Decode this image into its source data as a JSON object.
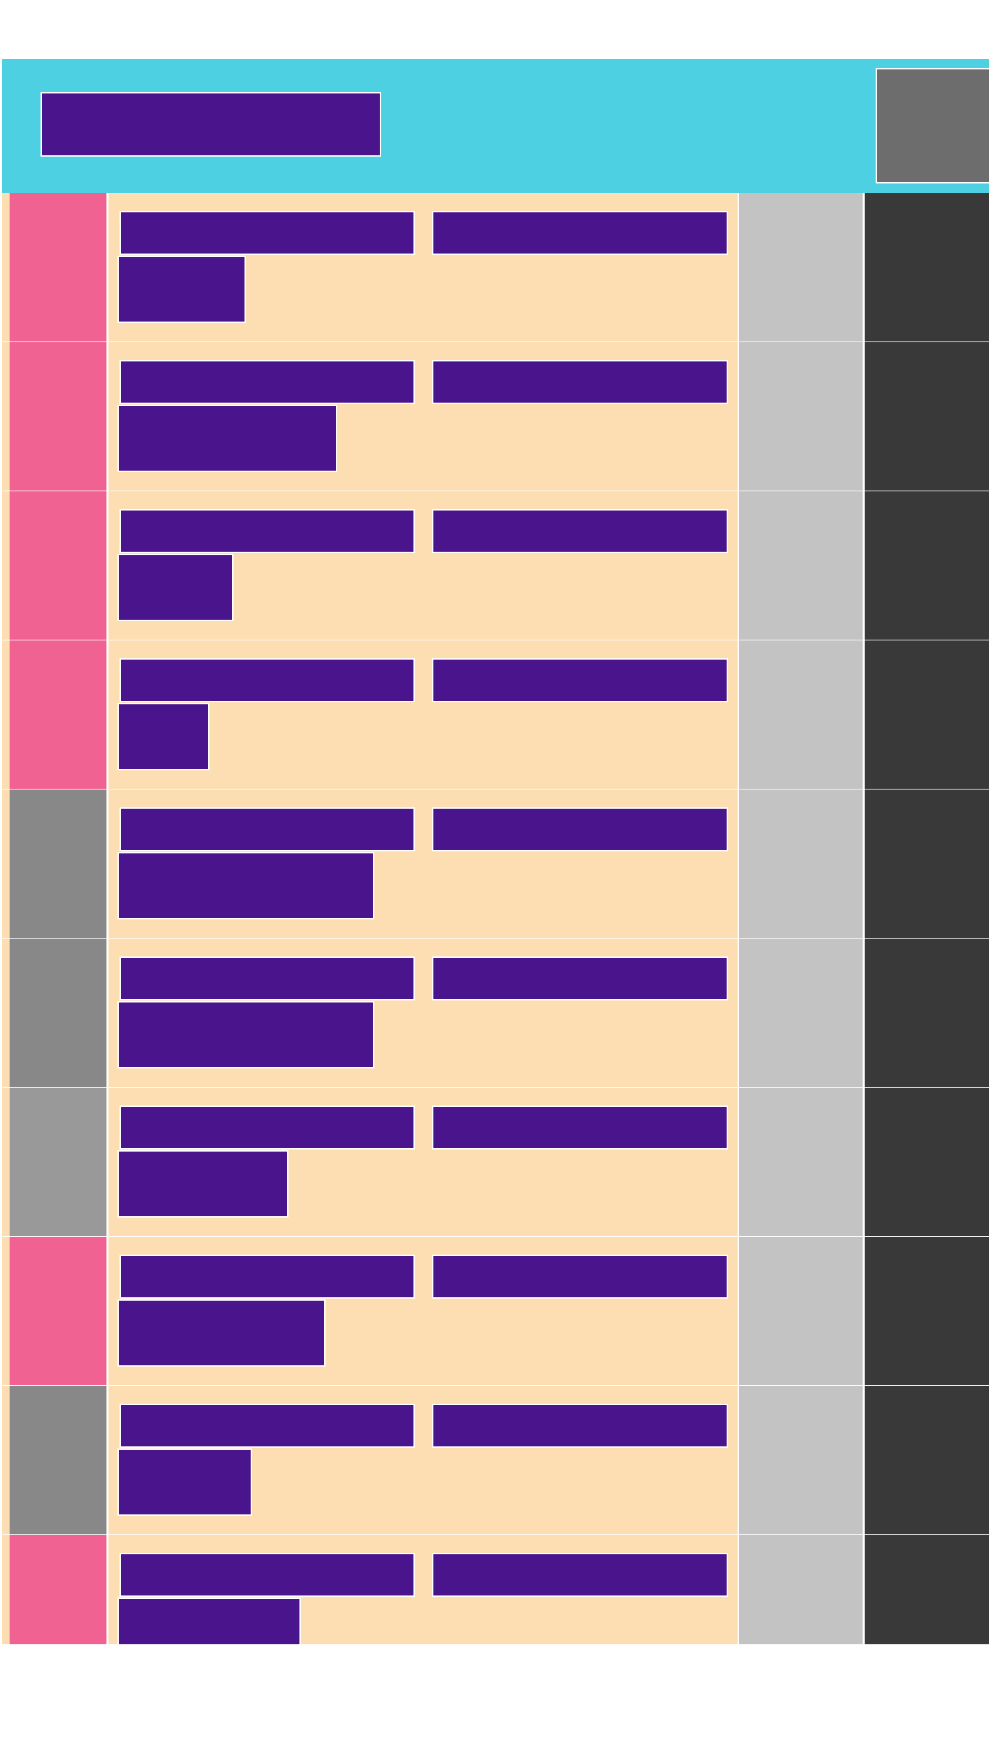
{
  "header": {
    "title": "",
    "colors": {
      "background": "#4dd0e1",
      "title_block": "#4a148c",
      "action": "#6d6d6d"
    }
  },
  "colors": {
    "row_body": "#fcdeb2",
    "text_block": "#4a148c",
    "meta_cell": "#c3c3c3",
    "action_cell": "#393939",
    "indicator_pink": "#f06292",
    "indicator_gray": "#888888",
    "indicator_lightgray": "#999999"
  },
  "rows": [
    {
      "indicator": "pink",
      "primary": "",
      "secondary": "",
      "detail": "",
      "detail_length": 0.21
    },
    {
      "indicator": "pink",
      "primary": "",
      "secondary": "",
      "detail": "",
      "detail_length": 0.36
    },
    {
      "indicator": "pink",
      "primary": "",
      "secondary": "",
      "detail": "",
      "detail_length": 0.19
    },
    {
      "indicator": "pink",
      "primary": "",
      "secondary": "",
      "detail": "",
      "detail_length": 0.15
    },
    {
      "indicator": "gray",
      "primary": "",
      "secondary": "",
      "detail": "",
      "detail_length": 0.42
    },
    {
      "indicator": "gray",
      "primary": "",
      "secondary": "",
      "detail": "",
      "detail_length": 0.42
    },
    {
      "indicator": "lightgray",
      "primary": "",
      "secondary": "",
      "detail": "",
      "detail_length": 0.28
    },
    {
      "indicator": "pink",
      "primary": "",
      "secondary": "",
      "detail": "",
      "detail_length": 0.34
    },
    {
      "indicator": "gray",
      "primary": "",
      "secondary": "",
      "detail": "",
      "detail_length": 0.22
    },
    {
      "indicator": "pink",
      "primary": "",
      "secondary": "",
      "detail": "",
      "detail_length": 0.3
    }
  ]
}
